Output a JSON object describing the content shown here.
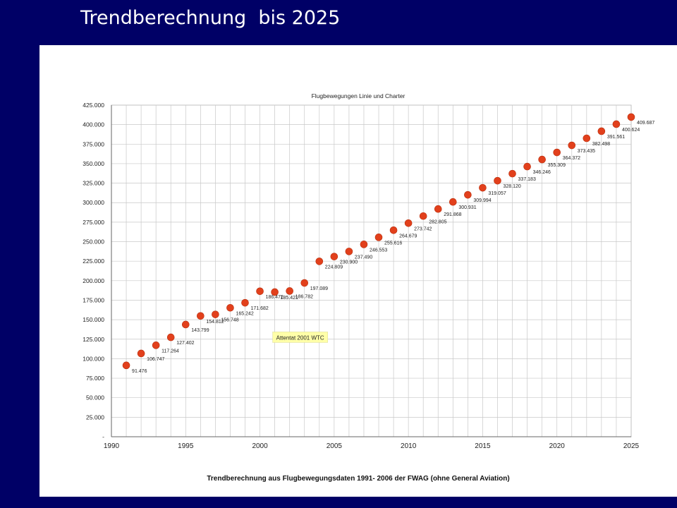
{
  "slide": {
    "title": "Trendberechnung  bis 2025"
  },
  "chart_data": {
    "type": "scatter",
    "title": "Flugbewegungen Linie und Charter",
    "xlabel": "Trendberechnung aus Flugbewegungsdaten 1991- 2006 der FWAG  (ohne General Aviation)",
    "ylabel": "",
    "xlim": [
      1990,
      2025
    ],
    "ylim": [
      0,
      425000
    ],
    "grid": true,
    "x_ticks": [
      "1990",
      "1995",
      "2000",
      "2005",
      "2010",
      "2015",
      "2020",
      "2025"
    ],
    "y_ticks": [
      "-",
      "25.000",
      "50.000",
      "75.000",
      "100.000",
      "125.000",
      "150.000",
      "175.000",
      "200.000",
      "225.000",
      "250.000",
      "275.000",
      "300.000",
      "325.000",
      "350.000",
      "375.000",
      "400.000",
      "425.000"
    ],
    "marker_color": "#e2401c",
    "annotation": {
      "text": "Attentat 2001 WTC",
      "x": 2001,
      "y": 128000
    },
    "points": [
      {
        "x": 1991,
        "y": 91476,
        "label": "91.476"
      },
      {
        "x": 1992,
        "y": 106747,
        "label": "106.747"
      },
      {
        "x": 1993,
        "y": 117264,
        "label": "117.264"
      },
      {
        "x": 1994,
        "y": 127402,
        "label": "127.402"
      },
      {
        "x": 1995,
        "y": 143799,
        "label": "143.799"
      },
      {
        "x": 1996,
        "y": 154812,
        "label": "154.812"
      },
      {
        "x": 1997,
        "y": 156748,
        "label": "156.748"
      },
      {
        "x": 1998,
        "y": 165242,
        "label": "165.242"
      },
      {
        "x": 1999,
        "y": 171682,
        "label": "171.682"
      },
      {
        "x": 2000,
        "y": 186472,
        "label": "186.472"
      },
      {
        "x": 2001,
        "y": 185421,
        "label": "185.421"
      },
      {
        "x": 2002,
        "y": 186782,
        "label": "186.782"
      },
      {
        "x": 2003,
        "y": 197089,
        "label": "197.089"
      },
      {
        "x": 2004,
        "y": 224809,
        "label": "224.809"
      },
      {
        "x": 2005,
        "y": 230900,
        "label": "230.900"
      },
      {
        "x": 2006,
        "y": 237490,
        "label": "237.490"
      },
      {
        "x": 2007,
        "y": 246553,
        "label": "246.553"
      },
      {
        "x": 2008,
        "y": 255616,
        "label": "255.616"
      },
      {
        "x": 2009,
        "y": 264679,
        "label": "264.679"
      },
      {
        "x": 2010,
        "y": 273742,
        "label": "273.742"
      },
      {
        "x": 2011,
        "y": 282805,
        "label": "282.805"
      },
      {
        "x": 2012,
        "y": 291868,
        "label": "291.868"
      },
      {
        "x": 2013,
        "y": 300931,
        "label": "300.931"
      },
      {
        "x": 2014,
        "y": 309994,
        "label": "309.994"
      },
      {
        "x": 2015,
        "y": 319057,
        "label": "319.057"
      },
      {
        "x": 2016,
        "y": 328120,
        "label": "328.120"
      },
      {
        "x": 2017,
        "y": 337183,
        "label": "337.183"
      },
      {
        "x": 2018,
        "y": 346246,
        "label": "346.246"
      },
      {
        "x": 2019,
        "y": 355309,
        "label": "355.309"
      },
      {
        "x": 2020,
        "y": 364372,
        "label": "364.372"
      },
      {
        "x": 2021,
        "y": 373435,
        "label": "373.435"
      },
      {
        "x": 2022,
        "y": 382498,
        "label": "382.498"
      },
      {
        "x": 2023,
        "y": 391561,
        "label": "391.561"
      },
      {
        "x": 2024,
        "y": 400624,
        "label": "400.624"
      },
      {
        "x": 2025,
        "y": 409687,
        "label": "409.687"
      }
    ]
  }
}
